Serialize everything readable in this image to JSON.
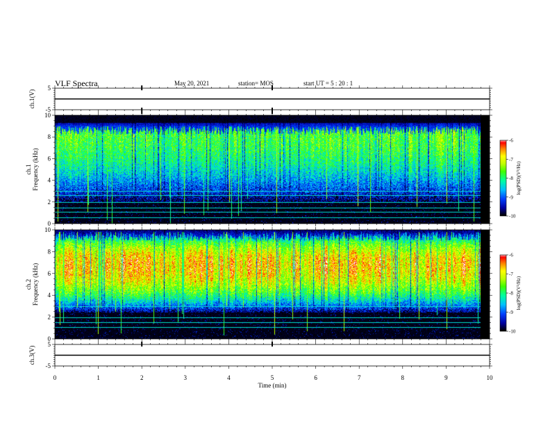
{
  "header": {
    "title": "VLF Spectra",
    "date": "May 20, 2021",
    "station": "station= MOS",
    "start_ut": "start  UT =   5 : 20 : 1"
  },
  "colors": {
    "background": "#ffffff",
    "spectrogram_floor": "#000000",
    "colormap": [
      "#000000",
      "#0000a0",
      "#0040ff",
      "#00c0ff",
      "#00ffa0",
      "#40ff00",
      "#c0ff00",
      "#ffff00",
      "#ff8000",
      "#ff0000",
      "#ffffff"
    ]
  },
  "chart_data": [
    {
      "type": "line",
      "panel": "ch1-waveform",
      "ylabel": "ch.1(V)",
      "ylim": [
        -5,
        5
      ],
      "y_ticks": [
        "5",
        "-5"
      ],
      "xlim": [
        0,
        10
      ],
      "series": [
        {
          "x": [
            0,
            10
          ],
          "y": [
            0,
            0
          ]
        }
      ]
    },
    {
      "type": "heatmap",
      "panel": "ch1-spectrogram",
      "ylabel_top": "ch.1",
      "ylabel": "Frequency (kHz)",
      "ylim": [
        0,
        10
      ],
      "y_ticks": [
        "0",
        "2",
        "4",
        "6",
        "8",
        "10"
      ],
      "xlim": [
        0,
        10
      ],
      "data_end_min": 9.8,
      "colorbar": {
        "label": "log(PSD)(V²/Hz)",
        "range": [
          -10,
          -6
        ],
        "ticks": [
          "-10",
          "-9",
          "-8",
          "-7",
          "-6"
        ]
      },
      "band_khz": [
        2.5,
        9.0
      ],
      "band_peak_khz": 8.5,
      "band_strength": 0.7,
      "tone_lines_khz": [
        0.6,
        1.1,
        1.5,
        2.0,
        2.6,
        3.0
      ]
    },
    {
      "type": "heatmap",
      "panel": "ch2-spectrogram",
      "ylabel_top": "ch.2",
      "ylabel": "Frequency (kHz)",
      "ylim": [
        0,
        10
      ],
      "y_ticks": [
        "0",
        "2",
        "4",
        "6",
        "8",
        "10"
      ],
      "xlim": [
        0,
        10
      ],
      "data_end_min": 9.8,
      "colorbar": {
        "label": "log(PSD)(V²/Hz)",
        "range": [
          -10,
          -6
        ],
        "ticks": [
          "-10",
          "-9",
          "-8",
          "-7",
          "-6"
        ]
      },
      "band_khz": [
        3.0,
        9.8
      ],
      "band_peak_khz": 6.8,
      "band_strength": 1.0,
      "tone_lines_khz": [
        1.1,
        1.5,
        2.0,
        3.0
      ]
    },
    {
      "type": "line",
      "panel": "ch3-waveform",
      "ylabel": "ch.3(V)",
      "ylim": [
        -5,
        5
      ],
      "y_ticks": [
        "5",
        "-5"
      ],
      "xlim": [
        0,
        10
      ],
      "xlabel": "Time (min)",
      "x_ticks": [
        "0",
        "1",
        "2",
        "3",
        "4",
        "5",
        "6",
        "7",
        "8",
        "9",
        "10"
      ],
      "series": [
        {
          "x": [
            0,
            10
          ],
          "y": [
            0,
            0
          ]
        }
      ]
    }
  ]
}
